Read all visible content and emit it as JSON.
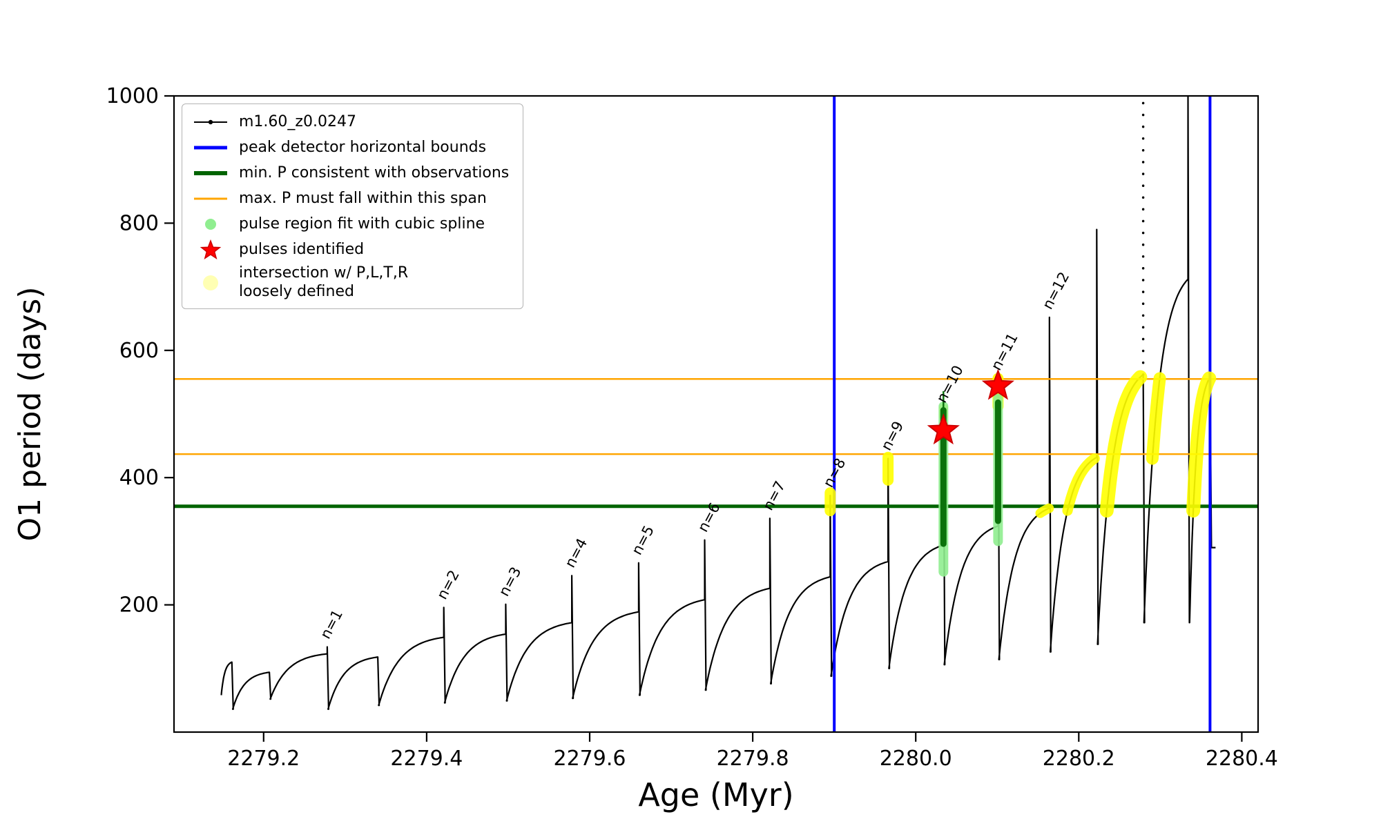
{
  "figure": {
    "background": "#ffffff"
  },
  "chart_data": {
    "type": "line",
    "title": "",
    "xlabel": "Age (Myr)",
    "ylabel": "O1 period (days)",
    "xlim": [
      2279.09,
      2280.42
    ],
    "ylim": [
      0,
      1000
    ],
    "xticks": [
      2279.2,
      2279.4,
      2279.6,
      2279.8,
      2280.0,
      2280.2,
      2280.4
    ],
    "xtick_labels": [
      "2279.2",
      "2279.4",
      "2279.6",
      "2279.8",
      "2280.0",
      "2280.2",
      "2280.4"
    ],
    "yticks": [
      200,
      400,
      600,
      800,
      1000
    ],
    "ytick_labels": [
      "200",
      "400",
      "600",
      "800",
      "1000"
    ],
    "grid": false,
    "legend_position": "upper left",
    "series": {
      "name": "m1.60_z0.0247",
      "color": "#000000",
      "marker": "point",
      "rise_sharpness": 3.2,
      "end_drop": 290,
      "cycles": [
        {
          "t0": 2279.148,
          "t1": 2279.161,
          "low": 58,
          "plateau": 110,
          "spike": 110,
          "label": ""
        },
        {
          "t0": 2279.162,
          "t1": 2279.207,
          "low": 36,
          "plateau": 94,
          "spike": 94,
          "label": ""
        },
        {
          "t0": 2279.208,
          "t1": 2279.278,
          "low": 52,
          "plateau": 123,
          "spike": 134,
          "label": "n=1"
        },
        {
          "t0": 2279.279,
          "t1": 2279.34,
          "low": 36,
          "plateau": 118,
          "spike": 118,
          "label": ""
        },
        {
          "t0": 2279.341,
          "t1": 2279.421,
          "low": 42,
          "plateau": 149,
          "spike": 196,
          "label": "n=2"
        },
        {
          "t0": 2279.422,
          "t1": 2279.497,
          "low": 46,
          "plateau": 154,
          "spike": 201,
          "label": "n=3"
        },
        {
          "t0": 2279.498,
          "t1": 2279.578,
          "low": 49,
          "plateau": 172,
          "spike": 246,
          "label": "n=4"
        },
        {
          "t0": 2279.579,
          "t1": 2279.66,
          "low": 53,
          "plateau": 189,
          "spike": 266,
          "label": "n=5"
        },
        {
          "t0": 2279.661,
          "t1": 2279.741,
          "low": 58,
          "plateau": 208,
          "spike": 302,
          "label": "n=6"
        },
        {
          "t0": 2279.742,
          "t1": 2279.821,
          "low": 66,
          "plateau": 226,
          "spike": 336,
          "label": "n=7"
        },
        {
          "t0": 2279.822,
          "t1": 2279.895,
          "low": 76,
          "plateau": 244,
          "spike": 372,
          "label": "n=8"
        },
        {
          "t0": 2279.896,
          "t1": 2279.966,
          "low": 88,
          "plateau": 268,
          "spike": 430,
          "label": "n=9"
        },
        {
          "t0": 2279.967,
          "t1": 2280.034,
          "low": 100,
          "plateau": 294,
          "spike": 505,
          "label": "n=10"
        },
        {
          "t0": 2280.035,
          "t1": 2280.101,
          "low": 106,
          "plateau": 324,
          "spike": 556,
          "label": "n=11"
        },
        {
          "t0": 2280.102,
          "t1": 2280.164,
          "low": 114,
          "plateau": 352,
          "spike": 652,
          "label": "n=12"
        },
        {
          "t0": 2280.165,
          "t1": 2280.222,
          "low": 126,
          "plateau": 432,
          "spike": 790,
          "label": ""
        },
        {
          "t0": 2280.223,
          "t1": 2280.279,
          "low": 138,
          "plateau": 562,
          "spike": 1000,
          "label": "",
          "spike_style": "dotted"
        },
        {
          "t0": 2280.28,
          "t1": 2280.334,
          "low": 172,
          "plateau": 712,
          "spike": 1000,
          "label": ""
        },
        {
          "t0": 2280.336,
          "t1": 2280.361,
          "low": 172,
          "plateau": 558,
          "spike": 558,
          "label": ""
        }
      ]
    },
    "peak_detector_bounds": {
      "label": "peak detector horizontal bounds",
      "color": "#0000ff",
      "x_values": [
        2279.9,
        2280.361
      ]
    },
    "min_P_line": {
      "label": "min. P consistent with observations",
      "color": "#006400",
      "y": 355
    },
    "max_P_span": {
      "label": "max. P must fall within this span",
      "color": "#ffa500",
      "y_values": [
        437,
        555
      ]
    },
    "pulse_region_fit": {
      "label": "pulse region fit with cubic spline",
      "color_core": "#0c720c",
      "color_light": "#90ee90",
      "segments": [
        {
          "x": 2280.034,
          "light": [
            252,
            512
          ],
          "core": [
            296,
            506
          ],
          "stem_top": 536
        },
        {
          "x": 2280.101,
          "light": [
            300,
            524
          ],
          "core": [
            332,
            518
          ],
          "stem_top": 0
        }
      ]
    },
    "pulses_identified": {
      "label": "pulses identified",
      "color": "#ff0000",
      "edge_color": "#cc0000",
      "points": [
        [
          2280.034,
          474
        ],
        [
          2280.101,
          544
        ]
      ]
    },
    "intersections": {
      "label": "intersection w/ P,L,T,R\nloosely defined",
      "color": "#ffff00",
      "legend_color": "#ffffb3",
      "vertical_blobs": [
        {
          "x": 2279.895,
          "y0": 348,
          "y1": 376,
          "w": 16
        },
        {
          "x": 2279.966,
          "y0": 396,
          "y1": 432,
          "w": 16
        },
        {
          "x": 2280.034,
          "y0": 497,
          "y1": 509,
          "w": 13
        },
        {
          "x": 2280.101,
          "y0": 512,
          "y1": 556,
          "w": 16
        }
      ],
      "curve_blobs": [
        {
          "cycle": 14,
          "ya": 344,
          "yb": 352,
          "w": 14
        },
        {
          "cycle": 15,
          "ya": 348,
          "yb": 430,
          "w": 15
        },
        {
          "cycle": 16,
          "ya": 348,
          "yb": 558,
          "w": 20
        },
        {
          "cycle": 17,
          "ya": 430,
          "yb": 556,
          "w": 18
        },
        {
          "cycle": 18,
          "ya": 348,
          "yb": 556,
          "w": 20
        }
      ]
    }
  },
  "legend": {
    "entries": [
      {
        "label": "m1.60_z0.0247",
        "marker": "line-dot",
        "color": "#000000",
        "lw": 2
      },
      {
        "label": "peak detector horizontal bounds",
        "marker": "line",
        "color": "#0000ff",
        "lw": 5
      },
      {
        "label": "min. P consistent with observations",
        "marker": "line",
        "color": "#006400",
        "lw": 6
      },
      {
        "label": "max. P must fall within this span",
        "marker": "line",
        "color": "#ffa500",
        "lw": 3
      },
      {
        "label": "pulse region fit with cubic spline",
        "marker": "dot",
        "color": "#90ee90",
        "size": 8
      },
      {
        "label": "pulses identified",
        "marker": "star",
        "color": "#ff0000",
        "size": 14
      },
      {
        "label": "intersection w/ P,L,T,R\nloosely defined",
        "marker": "dot",
        "color": "#ffffb3",
        "size": 11
      }
    ]
  }
}
